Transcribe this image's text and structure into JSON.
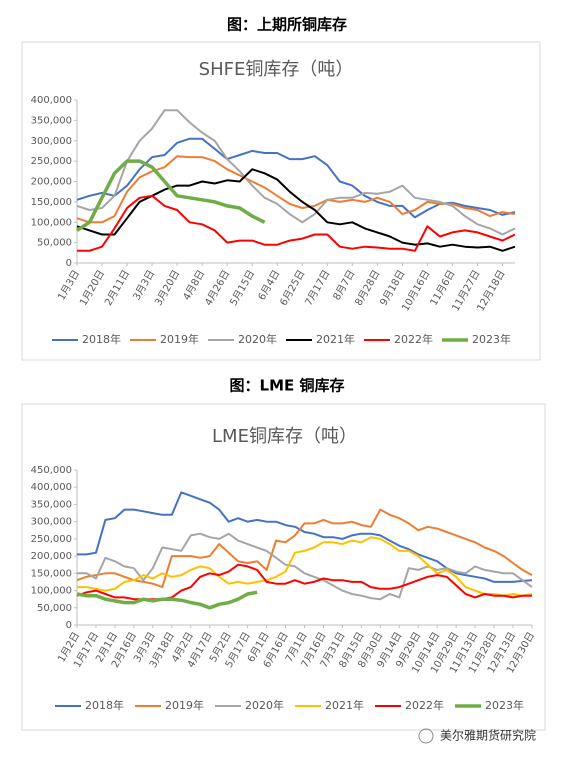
{
  "captions": [
    "图：上期所铜库存",
    "图：LME 铜库存"
  ],
  "watermark": "美尔雅期货研究院",
  "chart_data": [
    {
      "type": "line",
      "title": "SHFE铜库存（吨）",
      "categories": [
        "1月3日",
        null,
        "1月20日",
        null,
        "2月11日",
        null,
        "3月3日",
        null,
        "3月20日",
        null,
        "4月8日",
        null,
        "4月26日",
        null,
        "5月15日",
        null,
        "6月4日",
        null,
        "6月25日",
        null,
        "7月17日",
        null,
        "8月7日",
        null,
        "8月28日",
        null,
        "9月18日",
        null,
        "10月16日",
        null,
        "11月6日",
        null,
        "11月27日",
        null,
        "12月18日",
        null
      ],
      "ylim": [
        0,
        400000
      ],
      "yticks": [
        0,
        {
          "value": 50000,
          "label": "50,000"
        },
        {
          "value": 100000,
          "label": "100,000"
        },
        {
          "value": 150000,
          "label": "150,000"
        },
        {
          "value": 200000,
          "label": "200,000"
        },
        {
          "value": 250000,
          "label": "250,000"
        },
        {
          "value": 300000,
          "label": "300,000"
        },
        {
          "value": 350000,
          "label": "350,000"
        },
        {
          "value": 400000,
          "label": "400,000"
        }
      ],
      "legend": "bottom",
      "series": [
        {
          "name": "2018年",
          "color": "#4472c4",
          "values": [
            155000,
            165000,
            172000,
            165000,
            190000,
            230000,
            260000,
            265000,
            295000,
            305000,
            305000,
            280000,
            255000,
            265000,
            275000,
            270000,
            270000,
            255000,
            255000,
            262000,
            240000,
            200000,
            190000,
            165000,
            150000,
            140000,
            140000,
            112000,
            130000,
            145000,
            148000,
            140000,
            135000,
            130000,
            118000,
            125000
          ]
        },
        {
          "name": "2019年",
          "color": "#ed7d31",
          "values": [
            110000,
            100000,
            100000,
            115000,
            175000,
            210000,
            225000,
            235000,
            262000,
            260000,
            260000,
            250000,
            230000,
            215000,
            200000,
            185000,
            165000,
            145000,
            135000,
            140000,
            155000,
            150000,
            155000,
            150000,
            160000,
            150000,
            120000,
            130000,
            150000,
            145000,
            145000,
            135000,
            130000,
            115000,
            125000,
            120000
          ]
        },
        {
          "name": "2020年",
          "color": "#a5a5a5",
          "values": [
            140000,
            130000,
            135000,
            165000,
            250000,
            300000,
            330000,
            375000,
            375000,
            345000,
            320000,
            300000,
            255000,
            225000,
            190000,
            160000,
            145000,
            120000,
            100000,
            120000,
            155000,
            160000,
            160000,
            172000,
            170000,
            175000,
            190000,
            160000,
            155000,
            150000,
            140000,
            115000,
            95000,
            85000,
            70000,
            85000
          ]
        },
        {
          "name": "2021年",
          "color": "#000000",
          "values": [
            90000,
            80000,
            70000,
            70000,
            110000,
            150000,
            165000,
            180000,
            190000,
            190000,
            200000,
            195000,
            203000,
            200000,
            230000,
            220000,
            205000,
            175000,
            150000,
            130000,
            100000,
            95000,
            100000,
            85000,
            75000,
            65000,
            50000,
            45000,
            48000,
            40000,
            45000,
            40000,
            38000,
            40000,
            30000,
            40000
          ]
        },
        {
          "name": "2022年",
          "color": "#ff0000",
          "values": [
            30000,
            30000,
            40000,
            85000,
            135000,
            160000,
            165000,
            140000,
            130000,
            100000,
            95000,
            80000,
            50000,
            55000,
            55000,
            45000,
            45000,
            55000,
            60000,
            70000,
            70000,
            40000,
            35000,
            40000,
            38000,
            35000,
            35000,
            30000,
            90000,
            65000,
            75000,
            80000,
            75000,
            65000,
            55000,
            70000
          ]
        },
        {
          "name": "2023年",
          "color": "#70ad47",
          "width": 3.5,
          "values": [
            80000,
            100000,
            160000,
            220000,
            250000,
            250000,
            235000,
            200000,
            165000,
            160000,
            155000,
            150000,
            140000,
            135000,
            115000,
            100000,
            null,
            null,
            null,
            null,
            null,
            null,
            null,
            null,
            null,
            null,
            null,
            null,
            null,
            null,
            null,
            null,
            null,
            null,
            null,
            null
          ]
        }
      ]
    },
    {
      "type": "line",
      "title": "LME铜库存（吨）",
      "categories": [
        "1月2日",
        null,
        "1月17日",
        null,
        "2月1日",
        null,
        "2月16日",
        null,
        "3月3日",
        null,
        "3月18日",
        null,
        "4月2日",
        null,
        "4月17日",
        null,
        "5月2日",
        null,
        "5月17日",
        null,
        "6月1日",
        null,
        "6月16日",
        null,
        "7月1日",
        null,
        "7月16日",
        null,
        "7月31日",
        null,
        "8月15日",
        null,
        "8月30日",
        null,
        "9月14日",
        null,
        "9月29日",
        null,
        "10月14日",
        null,
        "10月29日",
        null,
        "11月13日",
        null,
        "11月28日",
        null,
        "12月13日",
        null,
        "12月30日"
      ],
      "ylim": [
        0,
        450000
      ],
      "yticks": [
        0,
        {
          "value": 50000,
          "label": "50,000"
        },
        {
          "value": 100000,
          "label": "100,000"
        },
        {
          "value": 150000,
          "label": "150,000"
        },
        {
          "value": 200000,
          "label": "200,000"
        },
        {
          "value": 250000,
          "label": "250,000"
        },
        {
          "value": 300000,
          "label": "300,000"
        },
        {
          "value": 350000,
          "label": "350,000"
        },
        {
          "value": 400000,
          "label": "400,000"
        },
        {
          "value": 450000,
          "label": "450,000"
        }
      ],
      "legend": "bottom",
      "series": [
        {
          "name": "2018年",
          "color": "#4472c4",
          "values": [
            205000,
            205000,
            210000,
            305000,
            310000,
            335000,
            335000,
            330000,
            325000,
            320000,
            320000,
            385000,
            375000,
            365000,
            355000,
            335000,
            300000,
            310000,
            300000,
            305000,
            300000,
            300000,
            290000,
            285000,
            270000,
            265000,
            255000,
            255000,
            250000,
            260000,
            265000,
            265000,
            260000,
            245000,
            230000,
            220000,
            205000,
            195000,
            185000,
            165000,
            150000,
            145000,
            140000,
            135000,
            125000,
            125000,
            125000,
            128000,
            130000
          ]
        },
        {
          "name": "2019年",
          "color": "#ed7d31",
          "values": [
            130000,
            140000,
            145000,
            150000,
            150000,
            140000,
            130000,
            125000,
            120000,
            110000,
            200000,
            200000,
            200000,
            195000,
            200000,
            235000,
            210000,
            185000,
            180000,
            185000,
            160000,
            245000,
            240000,
            260000,
            295000,
            295000,
            305000,
            295000,
            295000,
            300000,
            290000,
            285000,
            335000,
            320000,
            310000,
            295000,
            275000,
            285000,
            280000,
            270000,
            260000,
            250000,
            240000,
            225000,
            215000,
            200000,
            180000,
            160000,
            145000
          ]
        },
        {
          "name": "2020年",
          "color": "#a5a5a5",
          "values": [
            150000,
            150000,
            135000,
            195000,
            185000,
            170000,
            165000,
            130000,
            165000,
            225000,
            220000,
            215000,
            260000,
            265000,
            255000,
            250000,
            265000,
            245000,
            235000,
            225000,
            215000,
            195000,
            175000,
            170000,
            150000,
            140000,
            130000,
            115000,
            100000,
            90000,
            85000,
            78000,
            75000,
            90000,
            80000,
            165000,
            160000,
            170000,
            160000,
            165000,
            155000,
            150000,
            170000,
            160000,
            155000,
            150000,
            150000,
            130000,
            110000
          ]
        },
        {
          "name": "2021年",
          "color": "#ffc000",
          "values": [
            110000,
            110000,
            105000,
            100000,
            105000,
            125000,
            130000,
            145000,
            135000,
            150000,
            140000,
            145000,
            160000,
            170000,
            165000,
            140000,
            120000,
            125000,
            120000,
            125000,
            130000,
            140000,
            155000,
            210000,
            215000,
            225000,
            240000,
            240000,
            235000,
            245000,
            240000,
            255000,
            250000,
            235000,
            215000,
            215000,
            200000,
            175000,
            150000,
            160000,
            140000,
            110000,
            100000,
            90000,
            90000,
            85000,
            90000,
            85000,
            90000
          ]
        },
        {
          "name": "2022年",
          "color": "#ff0000",
          "values": [
            85000,
            95000,
            100000,
            90000,
            80000,
            80000,
            75000,
            75000,
            75000,
            75000,
            80000,
            100000,
            110000,
            140000,
            150000,
            145000,
            155000,
            175000,
            170000,
            160000,
            125000,
            120000,
            120000,
            130000,
            120000,
            125000,
            135000,
            130000,
            130000,
            125000,
            125000,
            110000,
            105000,
            105000,
            110000,
            120000,
            130000,
            140000,
            145000,
            140000,
            115000,
            90000,
            80000,
            90000,
            85000,
            85000,
            80000,
            85000,
            85000
          ]
        },
        {
          "name": "2023年",
          "color": "#70ad47",
          "width": 3.5,
          "values": [
            90000,
            85000,
            85000,
            75000,
            70000,
            65000,
            65000,
            75000,
            70000,
            75000,
            75000,
            72000,
            65000,
            60000,
            50000,
            60000,
            65000,
            75000,
            90000,
            95000,
            null,
            null,
            null,
            null,
            null,
            null,
            null,
            null,
            null,
            null,
            null,
            null,
            null,
            null,
            null,
            null,
            null,
            null,
            null,
            null,
            null,
            null,
            null,
            null,
            null,
            null,
            null,
            null,
            null
          ]
        }
      ]
    }
  ]
}
